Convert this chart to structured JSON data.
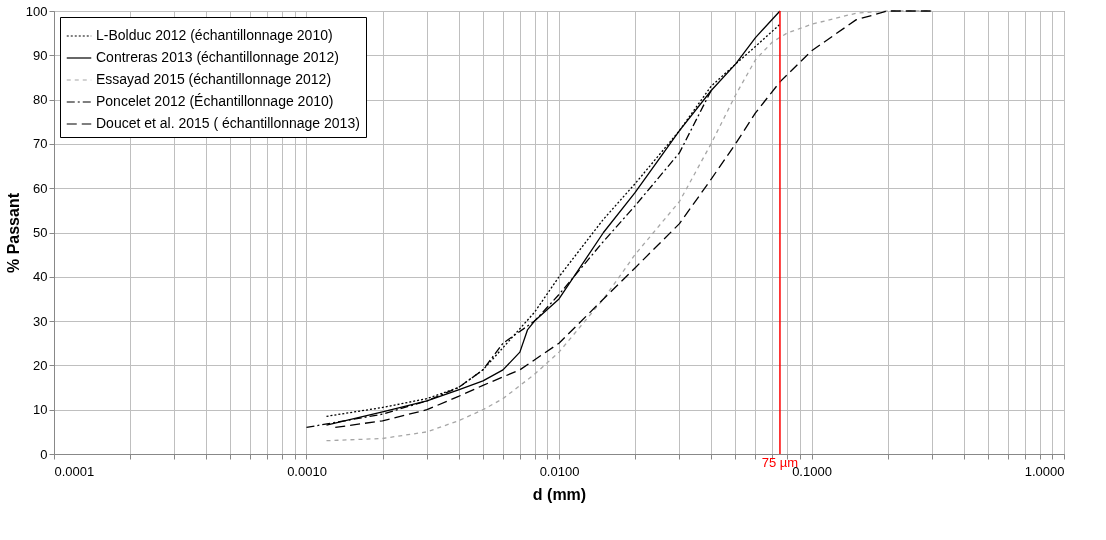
{
  "chart_data": {
    "type": "line",
    "xlabel": "d (mm)",
    "ylabel": "% Passant",
    "log": "x",
    "grid": true,
    "legend": "top left",
    "marker": "none",
    "xlim": [
      0.0001,
      1.0
    ],
    "ylim": [
      0,
      100
    ],
    "xticks": [
      {
        "value": 0.0001,
        "label": "0.0001"
      },
      {
        "value": 0.0002,
        "label": null
      },
      {
        "value": 0.0003,
        "label": null
      },
      {
        "value": 0.0004,
        "label": null
      },
      {
        "value": 0.0005,
        "label": null
      },
      {
        "value": 0.0006,
        "label": null
      },
      {
        "value": 0.0007,
        "label": null
      },
      {
        "value": 0.0008,
        "label": null
      },
      {
        "value": 0.0009,
        "label": null
      },
      {
        "value": 0.001,
        "label": "0.0010"
      },
      {
        "value": 0.002,
        "label": null
      },
      {
        "value": 0.003,
        "label": null
      },
      {
        "value": 0.004,
        "label": null
      },
      {
        "value": 0.005,
        "label": null
      },
      {
        "value": 0.006,
        "label": null
      },
      {
        "value": 0.007,
        "label": null
      },
      {
        "value": 0.008,
        "label": null
      },
      {
        "value": 0.009,
        "label": null
      },
      {
        "value": 0.01,
        "label": "0.0100"
      },
      {
        "value": 0.02,
        "label": null
      },
      {
        "value": 0.03,
        "label": null
      },
      {
        "value": 0.04,
        "label": null
      },
      {
        "value": 0.05,
        "label": null
      },
      {
        "value": 0.06,
        "label": null
      },
      {
        "value": 0.07,
        "label": null
      },
      {
        "value": 0.08,
        "label": null
      },
      {
        "value": 0.09,
        "label": null
      },
      {
        "value": 0.1,
        "label": "0.1000"
      },
      {
        "value": 0.2,
        "label": null
      },
      {
        "value": 0.3,
        "label": null
      },
      {
        "value": 0.4,
        "label": null
      },
      {
        "value": 0.5,
        "label": null
      },
      {
        "value": 0.6,
        "label": null
      },
      {
        "value": 0.7,
        "label": null
      },
      {
        "value": 0.8,
        "label": null
      },
      {
        "value": 0.9,
        "label": null
      },
      {
        "value": 1.0,
        "label": "1.0000"
      }
    ],
    "yticks": [
      0,
      10,
      20,
      30,
      40,
      50,
      60,
      70,
      80,
      90,
      100
    ],
    "series": [
      {
        "name": "L-Bolduc 2012 (échantillonnage 2010)",
        "color": "#000000",
        "line_style": "dotted",
        "x": [
          0.0012,
          0.002,
          0.003,
          0.004,
          0.005,
          0.006,
          0.008,
          0.01,
          0.015,
          0.02,
          0.03,
          0.04,
          0.05,
          0.06,
          0.075
        ],
        "values": [
          8.5,
          10.5,
          12.5,
          15,
          19,
          24,
          32,
          40,
          53,
          61,
          73,
          83,
          88,
          92,
          97
        ]
      },
      {
        "name": "Contreras 2013 (échantillonnage 2012)",
        "color": "#000000",
        "line_style": "solid",
        "x": [
          0.0012,
          0.002,
          0.003,
          0.004,
          0.005,
          0.006,
          0.007,
          0.0075,
          0.008,
          0.01,
          0.015,
          0.02,
          0.03,
          0.04,
          0.05,
          0.06,
          0.075
        ],
        "values": [
          6.5,
          9.5,
          12,
          14.5,
          16.5,
          19,
          23,
          28,
          30,
          35,
          50,
          59,
          73,
          82,
          88,
          94,
          100
        ]
      },
      {
        "name": "Essayad 2015 (échantillonnage 2012)",
        "color": "#a6a6a6",
        "line_style": "dashed",
        "x": [
          0.0012,
          0.002,
          0.003,
          0.004,
          0.005,
          0.006,
          0.008,
          0.01,
          0.015,
          0.02,
          0.03,
          0.04,
          0.05,
          0.06,
          0.07,
          0.08,
          0.1,
          0.15,
          0.2,
          0.3
        ],
        "values": [
          3,
          3.5,
          5,
          7.5,
          10,
          12.5,
          18,
          23,
          35,
          45,
          57,
          70,
          81,
          89,
          93,
          95,
          97,
          99.5,
          100,
          100
        ]
      },
      {
        "name": "Poncelet 2012 (Échantillonnage 2010)",
        "color": "#000000",
        "line_style": "dashdot",
        "x": [
          0.001,
          0.002,
          0.003,
          0.004,
          0.005,
          0.006,
          0.008,
          0.01,
          0.015,
          0.02,
          0.03,
          0.04
        ],
        "values": [
          6,
          9,
          12,
          15,
          19,
          25,
          30,
          36,
          48,
          56,
          68,
          82
        ]
      },
      {
        "name": "Doucet et al. 2015 ( échantillonnage 2013)",
        "color": "#000000",
        "line_style": "longdashed",
        "x": [
          0.0013,
          0.002,
          0.003,
          0.004,
          0.005,
          0.007,
          0.01,
          0.015,
          0.02,
          0.03,
          0.04,
          0.05,
          0.06,
          0.075,
          0.1,
          0.15,
          0.2,
          0.3
        ],
        "values": [
          6,
          7.5,
          10,
          13,
          15.5,
          19,
          25,
          35,
          42,
          52,
          62,
          70,
          77,
          84,
          91,
          98,
          100,
          100
        ]
      }
    ],
    "ref_lines": [
      {
        "axis": "x",
        "value": 0.075,
        "label": "75 µm",
        "color": "#ff0000"
      }
    ]
  }
}
